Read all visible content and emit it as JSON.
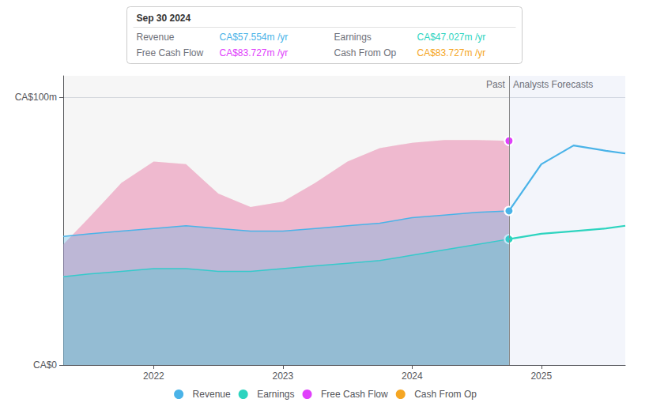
{
  "chart_data": {
    "type": "area",
    "xlim": [
      2021.3,
      2025.65
    ],
    "ylim": [
      0,
      108
    ],
    "xticks": [
      2022,
      2023,
      2024,
      2025
    ],
    "yticks": [
      {
        "value": 0,
        "label": "CA$0"
      },
      {
        "value": 100,
        "label": "CA$100m"
      }
    ],
    "grid": true,
    "legend": "bottom",
    "divider": {
      "x": 2024.75,
      "labels": [
        "Past",
        "Analysts Forecasts"
      ]
    },
    "series": [
      {
        "name": "Revenue",
        "color": "#4ab3e8",
        "x": [
          2021.3,
          2021.5,
          2021.75,
          2022.0,
          2022.25,
          2022.5,
          2022.75,
          2023.0,
          2023.25,
          2023.5,
          2023.75,
          2024.0,
          2024.25,
          2024.5,
          2024.75
        ],
        "values": [
          48,
          49,
          50,
          51,
          52,
          51,
          50,
          50,
          51,
          52,
          53,
          55,
          56,
          57,
          57.554
        ],
        "forecast_x": [
          2024.75,
          2025.0,
          2025.25,
          2025.5,
          2025.65
        ],
        "forecast_values": [
          57.554,
          75,
          82,
          80,
          79
        ]
      },
      {
        "name": "Earnings",
        "color": "#2dd4bf",
        "x": [
          2021.3,
          2021.5,
          2021.75,
          2022.0,
          2022.25,
          2022.5,
          2022.75,
          2023.0,
          2023.25,
          2023.5,
          2023.75,
          2024.0,
          2024.25,
          2024.5,
          2024.75
        ],
        "values": [
          33,
          34,
          35,
          36,
          36,
          35,
          35,
          36,
          37,
          38,
          39,
          41,
          43,
          45,
          47.027
        ],
        "forecast_x": [
          2024.75,
          2025.0,
          2025.25,
          2025.5,
          2025.65
        ],
        "forecast_values": [
          47.027,
          49,
          50,
          51,
          52
        ]
      },
      {
        "name": "Free Cash Flow",
        "color": "#e040fb",
        "x": [
          2021.3,
          2021.5,
          2021.75,
          2022.0,
          2022.25,
          2022.5,
          2022.75,
          2023.0,
          2023.25,
          2023.5,
          2023.75,
          2024.0,
          2024.25,
          2024.5,
          2024.75
        ],
        "values": [
          45,
          55,
          68,
          76,
          75,
          64,
          59,
          61,
          68,
          76,
          81,
          83,
          84,
          84,
          83.727
        ]
      },
      {
        "name": "Cash From Op",
        "color": "#f5a623",
        "x": [
          2021.3,
          2021.5,
          2021.75,
          2022.0,
          2022.25,
          2022.5,
          2022.75,
          2023.0,
          2023.25,
          2023.5,
          2023.75,
          2024.0,
          2024.25,
          2024.5,
          2024.75
        ],
        "values": [
          45,
          55,
          68,
          76,
          75,
          64,
          59,
          61,
          68,
          76,
          81,
          83,
          84,
          84,
          83.727
        ]
      }
    ],
    "info_box": {
      "title": "Sep 30 2024",
      "rows": [
        {
          "label": "Revenue",
          "value": "CA$57.554m /yr",
          "color": "#4ab3e8"
        },
        {
          "label": "Earnings",
          "value": "CA$47.027m /yr",
          "color": "#2dd4bf"
        },
        {
          "label": "Free Cash Flow",
          "value": "CA$83.727m /yr",
          "color": "#e040fb"
        },
        {
          "label": "Cash From Op",
          "value": "CA$83.727m /yr",
          "color": "#f5a623"
        }
      ]
    }
  }
}
